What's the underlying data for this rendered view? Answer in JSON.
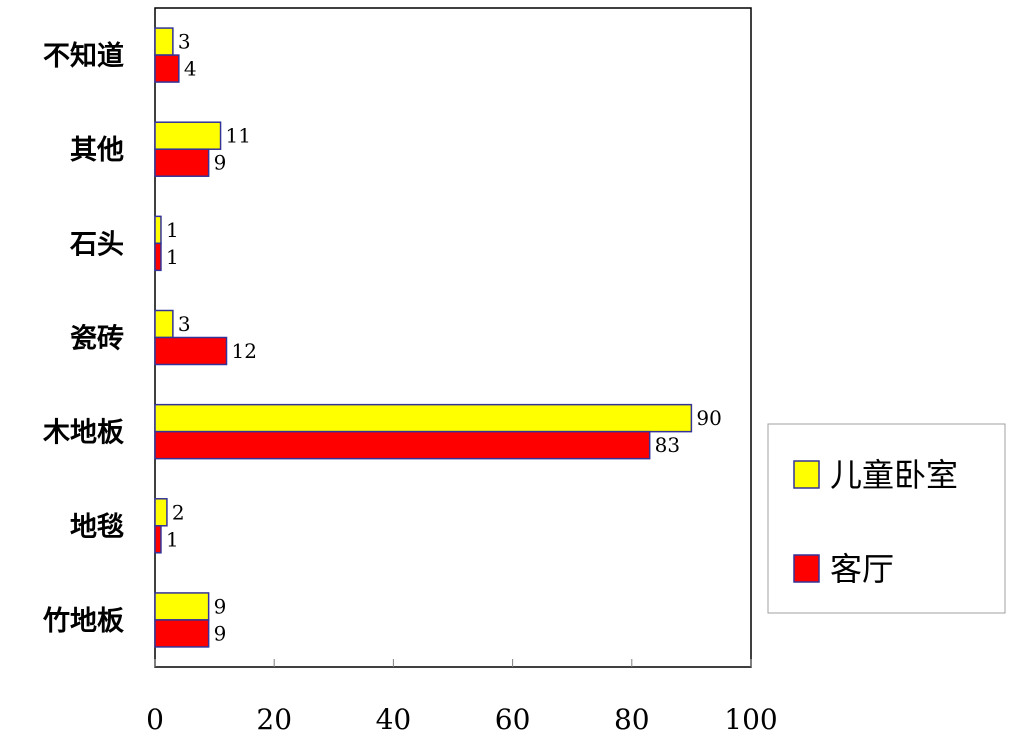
{
  "chart_data": {
    "type": "bar",
    "orientation": "horizontal",
    "categories": [
      "不知道",
      "其他",
      "石头",
      "瓷砖",
      "木地板",
      "地毯",
      "竹地板"
    ],
    "series": [
      {
        "name": "儿童卧室",
        "color": "#ffff00",
        "values": [
          3,
          11,
          1,
          3,
          90,
          2,
          9
        ]
      },
      {
        "name": "客厅",
        "color": "#ff0000",
        "values": [
          4,
          9,
          1,
          12,
          83,
          1,
          9
        ]
      }
    ],
    "xlim": [
      0,
      100
    ],
    "xticks": [
      "0",
      "20",
      "40",
      "60",
      "80",
      "100"
    ],
    "grid": false,
    "legend": "right"
  }
}
